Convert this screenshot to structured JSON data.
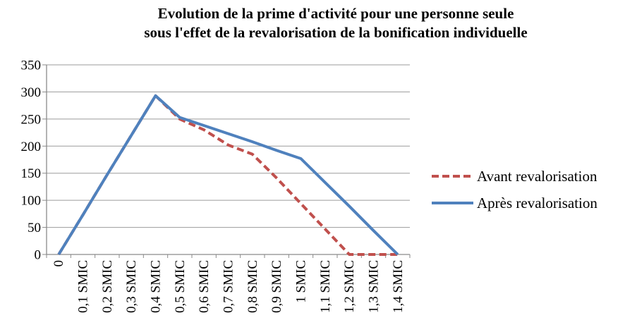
{
  "title": {
    "line1": "Evolution de la prime d'activité pour une personne seule",
    "line2": "sous l'effet de la revalorisation de la bonification individuelle"
  },
  "chart_data": {
    "type": "line",
    "categories": [
      "0",
      "0,1 SMIC",
      "0,2 SMIC",
      "0,3 SMIC",
      "0,4 SMIC",
      "0,5 SMIC",
      "0,6 SMIC",
      "0,7 SMIC",
      "0,8 SMIC",
      "0,9 SMIC",
      "1 SMIC",
      "1,1 SMIC",
      "1,2 SMIC",
      "1,3 SMIC",
      "1,4 SMIC"
    ],
    "series": [
      {
        "name": "Avant revalorisation",
        "color": "#C0504D",
        "style": "dashed",
        "values": [
          0,
          73,
          147,
          220,
          293,
          250,
          230,
          202,
          185,
          141,
          94,
          47,
          0,
          0,
          0
        ]
      },
      {
        "name": "Après revalorisation",
        "color": "#4F81BD",
        "style": "solid",
        "values": [
          0,
          73,
          147,
          220,
          293,
          253,
          238,
          223,
          208,
          192,
          177,
          133,
          89,
          44,
          0
        ]
      }
    ],
    "title": "Evolution de la prime d'activité pour une personne seule sous l'effet de la revalorisation de la bonification individuelle",
    "xlabel": "",
    "ylabel": "",
    "ylim": [
      0,
      350
    ],
    "ytick_step": 50,
    "ytick_labels": [
      "0",
      "50",
      "100",
      "150",
      "200",
      "250",
      "300",
      "350"
    ],
    "grid": true,
    "legend_position": "right",
    "gridline_color": "#9b9b9b",
    "axis_color": "#8a8a8a"
  }
}
